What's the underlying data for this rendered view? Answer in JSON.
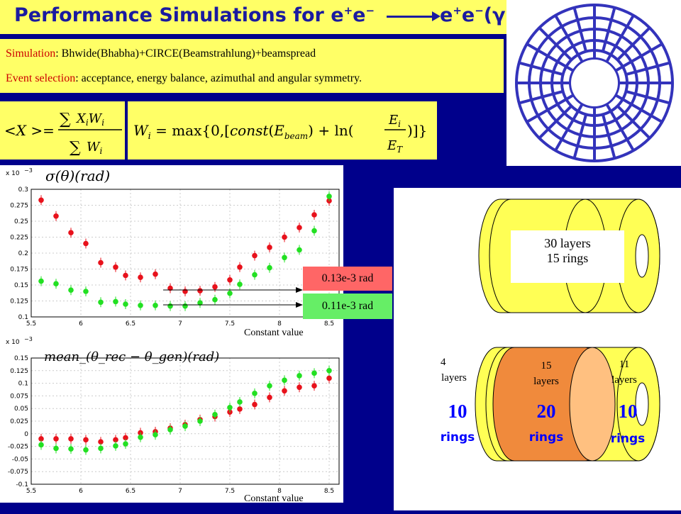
{
  "title": {
    "prefix": "Performance Simulations for e",
    "arrow_end": "e"
  },
  "info": {
    "simulation_key": "Simulation",
    "simulation_value": ": Bhwide(Bhabha)+CIRCE(Beamstrahlung)+beamspread",
    "selection_key": "Event selection",
    "selection_value": ": acceptance, energy balance, azimuthal and angular symmetry."
  },
  "plots": {
    "top_title": "σ(θ)(rad)",
    "bottom_title": "mean_(θ_rec − θ_gen)(rad)",
    "exponent": "x 10",
    "exp_sup": "−3",
    "label_red": "0.13e-3 rad",
    "label_green": "0.11e-3 rad",
    "constant_value_1": "Constant value",
    "constant_value_2": "Constant value",
    "colors": {
      "red": "#e8111b",
      "green": "#22e022",
      "red_box": "#ff6666",
      "green_box": "#66ee66"
    }
  },
  "chart_data": [
    {
      "type": "scatter",
      "title": "σ(θ)(rad)",
      "xlim": [
        5.5,
        8.6
      ],
      "ylim": [
        0.1,
        0.3
      ],
      "y_scale_note": "x 10^-3",
      "xticks": [
        "5.5",
        "6",
        "6.5",
        "7",
        "7.5",
        "8",
        "8.5"
      ],
      "yticks": [
        "0.1",
        "0.125",
        "0.15",
        "0.175",
        "0.2",
        "0.225",
        "0.25",
        "0.275",
        "0.3"
      ],
      "x": [
        5.6,
        5.75,
        5.9,
        6.05,
        6.2,
        6.35,
        6.45,
        6.6,
        6.75,
        6.9,
        7.05,
        7.2,
        7.35,
        7.5,
        7.6,
        7.75,
        7.9,
        8.05,
        8.2,
        8.35,
        8.5
      ],
      "series": [
        {
          "name": "",
          "color": "#e8111b",
          "values": [
            0.283,
            0.258,
            0.232,
            0.215,
            0.185,
            0.178,
            0.165,
            0.162,
            0.167,
            0.145,
            0.14,
            0.141,
            0.147,
            0.158,
            0.178,
            0.196,
            0.209,
            0.225,
            0.24,
            0.26,
            0.282
          ]
        },
        {
          "name": "",
          "color": "#22e022",
          "values": [
            0.156,
            0.152,
            0.142,
            0.14,
            0.123,
            0.124,
            0.12,
            0.118,
            0.118,
            0.117,
            0.117,
            0.122,
            0.127,
            0.137,
            0.151,
            0.166,
            0.177,
            0.193,
            0.205,
            0.235,
            0.289
          ]
        }
      ]
    },
    {
      "type": "scatter",
      "title": "mean_(θ_rec − θ_gen)(rad)",
      "xlim": [
        5.5,
        8.6
      ],
      "ylim": [
        -0.1,
        0.15
      ],
      "y_scale_note": "x 10^-3",
      "xticks": [
        "5.5",
        "6",
        "6.5",
        "7",
        "7.5",
        "8",
        "8.5"
      ],
      "yticks": [
        "-0.1",
        "-0.075",
        "-0.05",
        "-0.025",
        "0",
        "0.025",
        "0.05",
        "0.075",
        "0.1",
        "0.125",
        "0.15"
      ],
      "x": [
        5.6,
        5.75,
        5.9,
        6.05,
        6.2,
        6.35,
        6.45,
        6.6,
        6.75,
        6.9,
        7.05,
        7.2,
        7.35,
        7.5,
        7.6,
        7.75,
        7.9,
        8.05,
        8.2,
        8.35,
        8.5
      ],
      "series": [
        {
          "name": "",
          "color": "#e8111b",
          "values": [
            -0.01,
            -0.01,
            -0.01,
            -0.012,
            -0.016,
            -0.012,
            -0.008,
            0.002,
            0.004,
            0.011,
            0.018,
            0.028,
            0.034,
            0.043,
            0.049,
            0.058,
            0.072,
            0.085,
            0.092,
            0.095,
            0.11
          ]
        },
        {
          "name": "",
          "color": "#22e022",
          "values": [
            -0.022,
            -0.029,
            -0.03,
            -0.032,
            -0.029,
            -0.024,
            -0.02,
            -0.007,
            -0.002,
            0.008,
            0.015,
            0.025,
            0.038,
            0.052,
            0.063,
            0.08,
            0.095,
            0.106,
            0.115,
            0.12,
            0.125
          ]
        }
      ]
    }
  ],
  "cylinders": {
    "top_box_line1": "30 layers",
    "top_box_line2": "15 rings",
    "left_layers_num": "4",
    "left_layers_word": "layers",
    "left_rings_num": "10",
    "left_rings_word": "rings",
    "mid_layers_num": "15",
    "mid_layers_word": "layers",
    "mid_rings_num": "20",
    "mid_rings_word": "rings",
    "right_layers_num": "11",
    "right_layers_word": "layers",
    "right_rings_num": "10",
    "right_rings_word": "rings",
    "colors": {
      "yellow": "#ffff55",
      "orange": "#f08a3c",
      "peach": "#ffc080"
    }
  },
  "ring_figure": {
    "color": "#3333bb",
    "rings": 6,
    "spokes": 24
  }
}
